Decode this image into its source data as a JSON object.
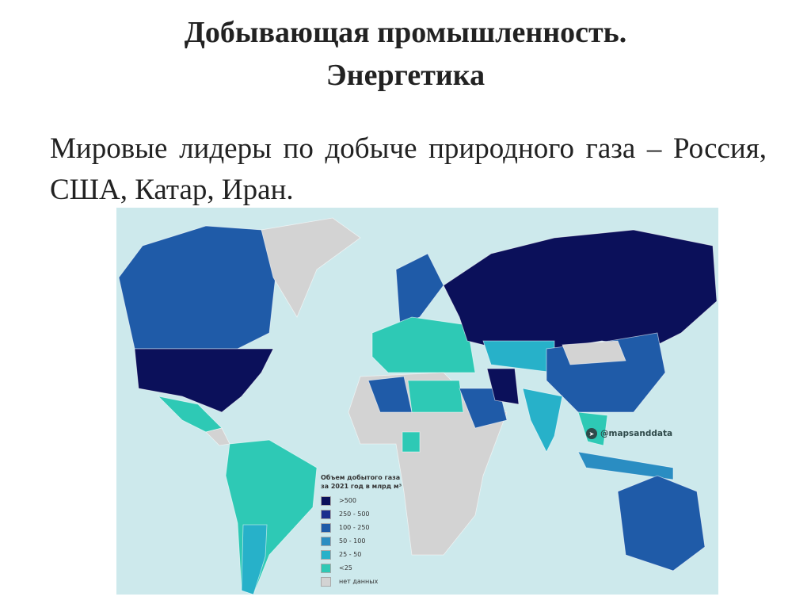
{
  "slide": {
    "title_line1": "Добывающая промышленность.",
    "title_line2": "Энергетика",
    "subtitle": "Мировые лидеры по добыче природного газа – Россия, США, Катар, Иран."
  },
  "map": {
    "ocean_color": "#cde9ec",
    "credit_icon": "telegram-icon",
    "credit": "@mapsanddata",
    "legend": {
      "title_line1": "Объем добытого газа",
      "title_line2": "за 2021 год в млрд м³",
      "items": [
        {
          "label": ">500",
          "color": "#0b105a"
        },
        {
          "label": "250 - 500",
          "color": "#1b2d8e"
        },
        {
          "label": "100 - 250",
          "color": "#1f5ba8"
        },
        {
          "label": "50 - 100",
          "color": "#2a8dc2"
        },
        {
          "label": "25 - 50",
          "color": "#27b1c9"
        },
        {
          "label": "<25",
          "color": "#2ec9b5"
        },
        {
          "label": "нет данных",
          "color": "#d3d3d3"
        }
      ]
    }
  }
}
